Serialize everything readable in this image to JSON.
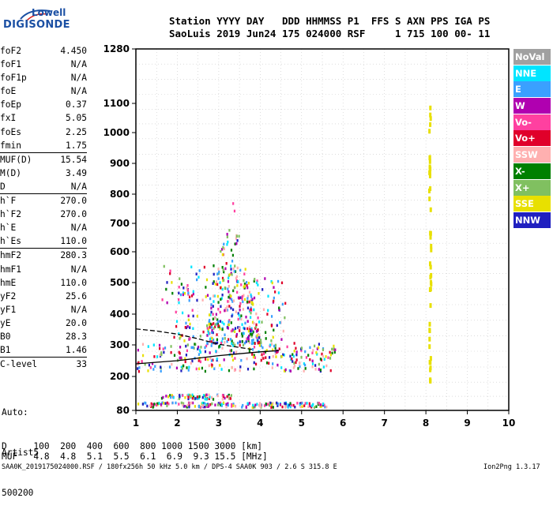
{
  "logo": {
    "line1": "Lowell",
    "line2": "DIGISONDE"
  },
  "header": {
    "labels": "Station YYYY DAY   DDD HHMMSS P1  FFS S AXN PPS IGA PS",
    "values": "SaoLuis 2019 Jun24 175 024000 RSF     1 715 100 00- 11"
  },
  "params_group1": [
    {
      "name": "foF2",
      "value": "4.450"
    },
    {
      "name": "foF1",
      "value": "N/A"
    },
    {
      "name": "foF1p",
      "value": "N/A"
    },
    {
      "name": "foE",
      "value": "N/A"
    },
    {
      "name": "foEp",
      "value": "0.37"
    },
    {
      "name": "fxI",
      "value": "5.05"
    },
    {
      "name": "foEs",
      "value": "2.25"
    },
    {
      "name": "fmin",
      "value": "1.75"
    }
  ],
  "params_group2": [
    {
      "name": "MUF(D)",
      "value": "15.54"
    },
    {
      "name": "M(D)",
      "value": "3.49"
    },
    {
      "name": "D",
      "value": "N/A"
    }
  ],
  "params_group3": [
    {
      "name": "h`F",
      "value": "270.0"
    },
    {
      "name": "h`F2",
      "value": "270.0"
    },
    {
      "name": "h`E",
      "value": "N/A"
    },
    {
      "name": "h`Es",
      "value": "110.0"
    }
  ],
  "params_group4": [
    {
      "name": "hmF2",
      "value": "280.3"
    },
    {
      "name": "hmF1",
      "value": "N/A"
    },
    {
      "name": "hmE",
      "value": "110.0"
    },
    {
      "name": "yF2",
      "value": "25.6"
    },
    {
      "name": "yF1",
      "value": "N/A"
    },
    {
      "name": "yE",
      "value": "20.0"
    },
    {
      "name": "B0",
      "value": "28.3"
    },
    {
      "name": "B1",
      "value": "1.46"
    }
  ],
  "params_group5": [
    {
      "name": "C-level",
      "value": "33"
    }
  ],
  "auto": {
    "line1": "Auto:",
    "line2": "Artist5",
    "line3": "500200"
  },
  "legend": [
    {
      "label": "NoVal",
      "color": "#a0a0a0"
    },
    {
      "label": "NNE",
      "color": "#00e5ff"
    },
    {
      "label": "E",
      "color": "#3aa0ff"
    },
    {
      "label": "W",
      "color": "#b000b0"
    },
    {
      "label": "Vo-",
      "color": "#ff40a0"
    },
    {
      "label": "Vo+",
      "color": "#e0002a"
    },
    {
      "label": "SSW",
      "color": "#ffb0b0"
    },
    {
      "label": "X-",
      "color": "#008000"
    },
    {
      "label": "X+",
      "color": "#80c060"
    },
    {
      "label": "SSE",
      "color": "#e8e000"
    },
    {
      "label": "NNW",
      "color": "#2020c0"
    }
  ],
  "muf_table": {
    "d_row": "D     100  200  400  600  800 1000 1500 3000 [km]",
    "muf_row": "MUF   4.8  4.8  5.1  5.5  6.1  6.9  9.3 15.5 [MHz]"
  },
  "footer": {
    "left": "SAA0K_2019175024000.RSF / 180fx256h 50 kHz 5.0 km / DPS-4 SAA0K 903 / 2.6 S 315.8 E",
    "right": "Ion2Png 1.3.17"
  },
  "chart_data": {
    "type": "scatter",
    "xlim": [
      1,
      10
    ],
    "ylim": [
      80,
      1280
    ],
    "x_ticks": [
      "1",
      "2",
      "3",
      "4",
      "5",
      "6",
      "7",
      "8",
      "9",
      "10"
    ],
    "y_ticks": [
      "80",
      "200",
      "300",
      "400",
      "500",
      "600",
      "700",
      "800",
      "900",
      "1000",
      "1100",
      "1280"
    ],
    "y_tick_values": [
      80,
      200,
      300,
      400,
      500,
      600,
      700,
      800,
      900,
      1000,
      1100,
      1280
    ],
    "y_scale": "nonlinear (ionogram virtual height)",
    "grid": true,
    "legend_position": "right",
    "profile_curve": {
      "color": "#000000",
      "x": [
        1.0,
        1.5,
        2.0,
        2.5,
        3.0,
        3.5,
        4.0,
        4.45
      ],
      "y": [
        240,
        245,
        250,
        258,
        266,
        272,
        278,
        282
      ]
    },
    "trace_curve": {
      "color": "#000000",
      "x": [
        1.0,
        1.5,
        2.0,
        2.5,
        3.0,
        3.5,
        3.8
      ],
      "y": [
        352,
        345,
        335,
        320,
        302,
        292,
        286
      ]
    },
    "echo_clusters": [
      {
        "name": "F-layer trace",
        "x_range": [
          1.0,
          5.8
        ],
        "y_range": [
          220,
          310
        ],
        "density": 260
      },
      {
        "name": "Spread-F plume",
        "x_range": [
          2.7,
          4.0
        ],
        "y_range": [
          310,
          800
        ],
        "density": 240
      },
      {
        "name": "Upper spread",
        "x_range": [
          1.9,
          4.6
        ],
        "y_range": [
          300,
          520
        ],
        "density": 160
      },
      {
        "name": "Second hop",
        "x_range": [
          1.6,
          3.9
        ],
        "y_range": [
          440,
          560
        ],
        "density": 60
      },
      {
        "name": "Es layer",
        "x_range": [
          1.0,
          5.6
        ],
        "y_range": [
          95,
          112
        ],
        "density": 180
      },
      {
        "name": "Es second",
        "x_range": [
          1.6,
          3.3
        ],
        "y_range": [
          124,
          140
        ],
        "density": 70
      },
      {
        "name": "Interference 8 MHz",
        "x_range": [
          8.05,
          8.1
        ],
        "y_range": [
          180,
          1120
        ],
        "density": 45
      }
    ]
  }
}
